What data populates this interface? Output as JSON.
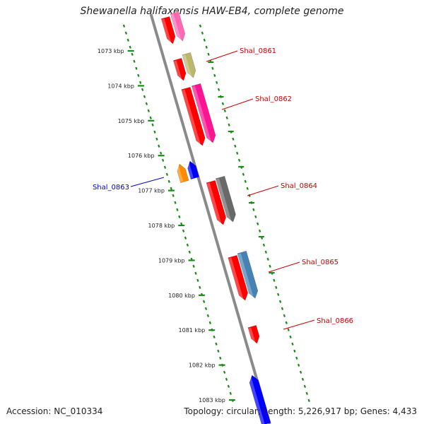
{
  "title": "Shewanella halifaxensis HAW-EB4, complete genome",
  "footer": {
    "accession": "Accession: NC_010334",
    "stats": "Topology: circular; Length: 5,226,917 bp; Genes: 4,433"
  },
  "colors": {
    "backbone": "#8a8a8a",
    "tick": "#1a8a1a",
    "label_forward": "#cc0000",
    "label_reverse": "#0000cc"
  },
  "kbp_ticks": [
    "1073 kbp",
    "1074 kbp",
    "1075 kbp",
    "1076 kbp",
    "1077 kbp",
    "1078 kbp",
    "1079 kbp",
    "1080 kbp",
    "1081 kbp",
    "1082 kbp",
    "1083 kbp"
  ],
  "gene_labels": [
    {
      "text": "Shal_0861",
      "strand": "forward"
    },
    {
      "text": "Shal_0862",
      "strand": "forward"
    },
    {
      "text": "Shal_0863",
      "strand": "reverse"
    },
    {
      "text": "Shal_0864",
      "strand": "forward"
    },
    {
      "text": "Shal_0865",
      "strand": "forward"
    },
    {
      "text": "Shal_0866",
      "strand": "forward"
    }
  ],
  "features": [
    {
      "name": "gene-0861-cds",
      "color": "#ff0000",
      "strand": "forward"
    },
    {
      "name": "gene-0861-product",
      "color": "#bdb76b",
      "strand": "forward"
    },
    {
      "name": "gene-0862-cds",
      "color": "#ff0000",
      "strand": "forward"
    },
    {
      "name": "gene-0862-product",
      "color": "#ff1493",
      "strand": "forward"
    },
    {
      "name": "gene-0863-cds",
      "color": "#0000ff",
      "strand": "reverse"
    },
    {
      "name": "gene-0863-product",
      "color": "#ff8c00",
      "strand": "reverse"
    },
    {
      "name": "gene-0864-cds",
      "color": "#ff0000",
      "strand": "forward"
    },
    {
      "name": "gene-0864-product",
      "color": "#696969",
      "strand": "forward"
    },
    {
      "name": "gene-0865-cds",
      "color": "#ff0000",
      "strand": "forward"
    },
    {
      "name": "gene-0865-product",
      "color": "#4682b4",
      "strand": "forward"
    },
    {
      "name": "gene-0866-cds",
      "color": "#ff0000",
      "strand": "forward"
    },
    {
      "name": "gene-top-cds",
      "color": "#ff0000",
      "strand": "forward"
    },
    {
      "name": "gene-top-product",
      "color": "#ff69b4",
      "strand": "forward"
    },
    {
      "name": "gene-bottom-cds",
      "color": "#0000ff",
      "strand": "reverse"
    }
  ]
}
